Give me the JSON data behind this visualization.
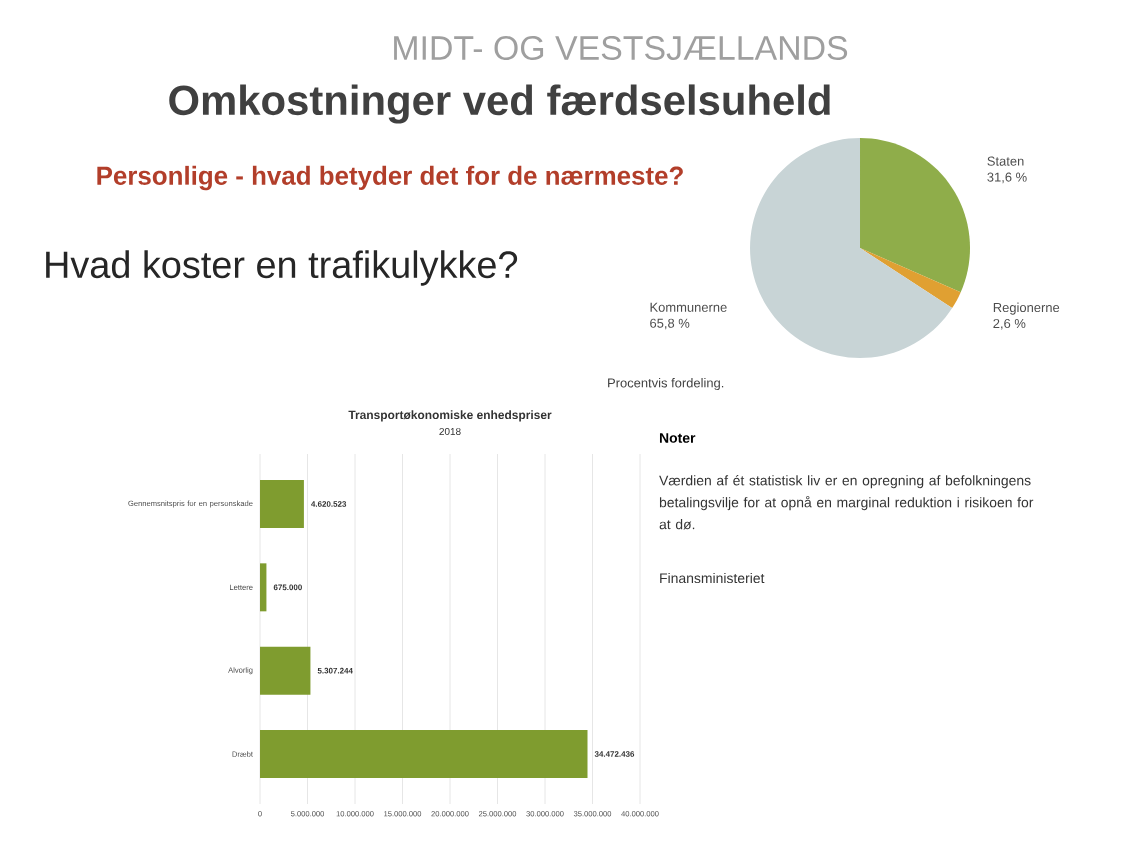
{
  "chart_data": [
    {
      "type": "bar",
      "orientation": "horizontal",
      "title": "Transportøkonomiske enhedspriser",
      "subtitle": "2018",
      "categories": [
        "Gennemsnitspris for en personskade",
        "Lettere",
        "Alvorlig",
        "Dræbt"
      ],
      "values": [
        4620523,
        675000,
        5307244,
        34472436
      ],
      "value_labels": [
        "4.620.523",
        "675.000",
        "5.307.244",
        "34.472.436"
      ],
      "color": "#7f9c2f",
      "grid": "x",
      "xlim": [
        0,
        40000000
      ],
      "xticks": [
        0,
        {
          "value": 5000000,
          "label": "5.000.000"
        },
        {
          "value": 10000000,
          "label": "10.000.000"
        },
        {
          "value": 15000000,
          "label": "15.000.000"
        },
        {
          "value": 20000000,
          "label": "20.000.000"
        },
        {
          "value": 25000000,
          "label": "25.000.000"
        },
        {
          "value": 30000000,
          "label": "30.000.000"
        },
        {
          "value": 35000000,
          "label": "35.000.000"
        },
        {
          "value": 40000000,
          "label": "40.000.000"
        }
      ],
      "annotations": [
        "MIDT- OG VESTSJÆLLANDS",
        "Omkostninger ved færdselsuheld",
        "Personlige - hvad betyder det for de nærmeste?",
        "Hvad koster en trafikulykke?"
      ]
    },
    {
      "type": "pie",
      "categories": [
        "Staten",
        "Regionerne",
        "Kommunerne"
      ],
      "values": [
        31.6,
        2.6,
        65.8
      ],
      "value_labels": [
        "31,6 %",
        "2,6 %",
        "65,8 %"
      ],
      "colors": [
        "#8fad4a",
        "#e0a032",
        "#c8d4d6"
      ],
      "annotations": [
        "Procentvis fordeling.",
        "Noter",
        "Værdien af ét statistisk liv er en opregning af befolkningens betalingsvilje for at opnå en marginal reduktion i risikoen for at dø.",
        "Finansministeriet"
      ]
    }
  ]
}
